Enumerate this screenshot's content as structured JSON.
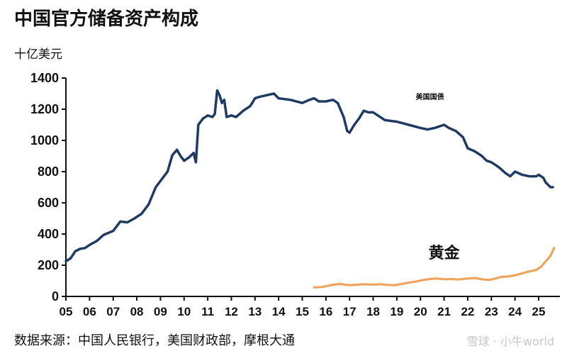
{
  "title": "中国官方储备资产构成",
  "unit": "十亿美元",
  "source": "数据来源：中国人民银行，美国财政部，摩根大通",
  "watermark": "雪球 · 小牛world",
  "colors": {
    "treasuries": "#1f3b64",
    "gold": "#f0a35a",
    "axis": "#111111"
  },
  "chart_data": {
    "type": "line",
    "title": "中国官方储备资产构成",
    "ylabel": "十亿美元",
    "ylim": [
      0,
      1400
    ],
    "yticks": [
      0,
      200,
      400,
      600,
      800,
      1000,
      1200,
      1400
    ],
    "xlim": [
      2005,
      2025.9
    ],
    "xticks": [
      "05",
      "06",
      "07",
      "08",
      "09",
      "10",
      "11",
      "12",
      "13",
      "14",
      "15",
      "16",
      "17",
      "18",
      "19",
      "20",
      "21",
      "22",
      "23",
      "24",
      "25"
    ],
    "grid": false,
    "series": [
      {
        "name": "美国国债",
        "color": "#1f3b64",
        "x": [
          2005.0,
          2005.2,
          2005.4,
          2005.6,
          2005.8,
          2006.0,
          2006.3,
          2006.6,
          2007.0,
          2007.3,
          2007.6,
          2007.9,
          2008.2,
          2008.5,
          2008.8,
          2009.1,
          2009.3,
          2009.5,
          2009.7,
          2009.85,
          2010.0,
          2010.2,
          2010.4,
          2010.5,
          2010.6,
          2010.8,
          2011.0,
          2011.2,
          2011.3,
          2011.4,
          2011.5,
          2011.6,
          2011.7,
          2011.8,
          2012.0,
          2012.2,
          2012.5,
          2012.8,
          2013.0,
          2013.2,
          2013.5,
          2013.8,
          2014.0,
          2014.5,
          2015.0,
          2015.3,
          2015.5,
          2015.7,
          2016.0,
          2016.3,
          2016.5,
          2016.75,
          2016.9,
          2017.0,
          2017.2,
          2017.4,
          2017.6,
          2017.8,
          2018.0,
          2018.5,
          2019.0,
          2019.5,
          2020.0,
          2020.3,
          2020.6,
          2021.0,
          2021.2,
          2021.5,
          2021.8,
          2022.0,
          2022.3,
          2022.6,
          2022.8,
          2023.0,
          2023.3,
          2023.6,
          2023.8,
          2024.0,
          2024.3,
          2024.6,
          2024.9,
          2025.0,
          2025.2,
          2025.3,
          2025.5,
          2025.6
        ],
        "values": [
          225,
          245,
          290,
          305,
          310,
          330,
          355,
          395,
          420,
          480,
          475,
          500,
          530,
          590,
          700,
          760,
          800,
          905,
          940,
          900,
          870,
          890,
          920,
          860,
          1100,
          1140,
          1160,
          1150,
          1170,
          1320,
          1290,
          1240,
          1260,
          1150,
          1160,
          1150,
          1190,
          1220,
          1270,
          1280,
          1290,
          1300,
          1270,
          1260,
          1240,
          1260,
          1270,
          1250,
          1250,
          1260,
          1240,
          1150,
          1060,
          1050,
          1100,
          1140,
          1190,
          1180,
          1180,
          1130,
          1120,
          1100,
          1080,
          1070,
          1080,
          1100,
          1080,
          1060,
          1020,
          950,
          930,
          900,
          870,
          860,
          830,
          790,
          770,
          800,
          780,
          770,
          770,
          780,
          760,
          730,
          700,
          700
        ]
      },
      {
        "name": "黄金",
        "color": "#f0a35a",
        "x": [
          2015.5,
          2015.8,
          2016.0,
          2016.3,
          2016.6,
          2017.0,
          2017.3,
          2017.6,
          2018.0,
          2018.3,
          2018.6,
          2018.9,
          2019.2,
          2019.5,
          2019.8,
          2020.1,
          2020.4,
          2020.7,
          2021.0,
          2021.3,
          2021.6,
          2022.0,
          2022.3,
          2022.6,
          2022.9,
          2023.1,
          2023.4,
          2023.7,
          2024.0,
          2024.3,
          2024.6,
          2024.9,
          2025.1,
          2025.3,
          2025.5,
          2025.65
        ],
        "values": [
          58,
          60,
          65,
          75,
          80,
          72,
          75,
          78,
          76,
          78,
          74,
          72,
          80,
          88,
          95,
          105,
          112,
          115,
          110,
          112,
          108,
          115,
          118,
          110,
          106,
          112,
          125,
          128,
          135,
          148,
          160,
          170,
          190,
          225,
          260,
          310
        ]
      }
    ],
    "annotations": [
      {
        "text": "美国国债",
        "series": "美国国债"
      },
      {
        "text": "黄金",
        "series": "黄金"
      }
    ]
  }
}
